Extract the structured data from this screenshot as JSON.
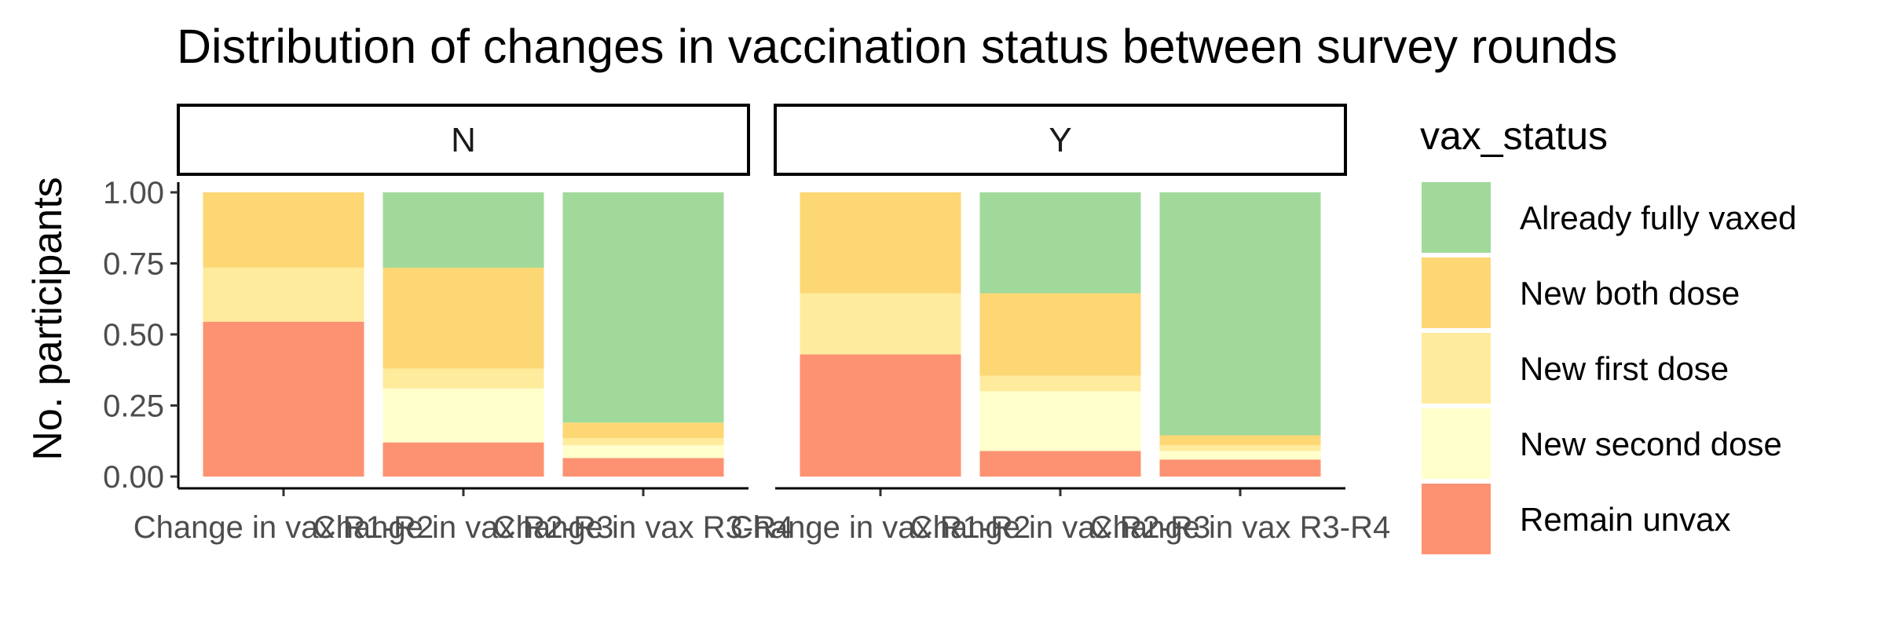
{
  "chart_data": {
    "type": "bar",
    "stacked": true,
    "title": "Distribution of changes in vaccination status between survey rounds",
    "ylabel": "No. participants",
    "ylim": [
      0,
      1
    ],
    "yticks": [
      "0.00",
      "0.25",
      "0.50",
      "0.75",
      "1.00"
    ],
    "categories": [
      "Change in vax R1-R2",
      "Change in vax R2-R3",
      "Change in vax R3-R4"
    ],
    "legend": {
      "title": "vax_status",
      "position": "right",
      "entries": [
        "Already fully vaxed",
        "New both dose",
        "New first dose",
        "New second dose",
        "Remain unvax"
      ]
    },
    "colors": {
      "Already fully vaxed": "#a1d99b",
      "New both dose": "#fdd774",
      "New first dose": "#feeb9c",
      "New second dose": "#ffffcc",
      "Remain unvax": "#fc9272"
    },
    "stack_order": [
      "Remain unvax",
      "New second dose",
      "New first dose",
      "New both dose",
      "Already fully vaxed"
    ],
    "facets": [
      {
        "label": "N",
        "series": [
          {
            "name": "Remain unvax",
            "values": [
              0.545,
              0.12,
              0.065
            ]
          },
          {
            "name": "New second dose",
            "values": [
              0.0,
              0.19,
              0.045
            ]
          },
          {
            "name": "New first dose",
            "values": [
              0.19,
              0.07,
              0.025
            ]
          },
          {
            "name": "New both dose",
            "values": [
              0.265,
              0.355,
              0.055
            ]
          },
          {
            "name": "Already fully vaxed",
            "values": [
              0.0,
              0.265,
              0.81
            ]
          }
        ]
      },
      {
        "label": "Y",
        "series": [
          {
            "name": "Remain unvax",
            "values": [
              0.43,
              0.09,
              0.06
            ]
          },
          {
            "name": "New second dose",
            "values": [
              0.0,
              0.21,
              0.03
            ]
          },
          {
            "name": "New first dose",
            "values": [
              0.215,
              0.055,
              0.02
            ]
          },
          {
            "name": "New both dose",
            "values": [
              0.355,
              0.29,
              0.035
            ]
          },
          {
            "name": "Already fully vaxed",
            "values": [
              0.0,
              0.355,
              0.855
            ]
          }
        ]
      }
    ]
  }
}
